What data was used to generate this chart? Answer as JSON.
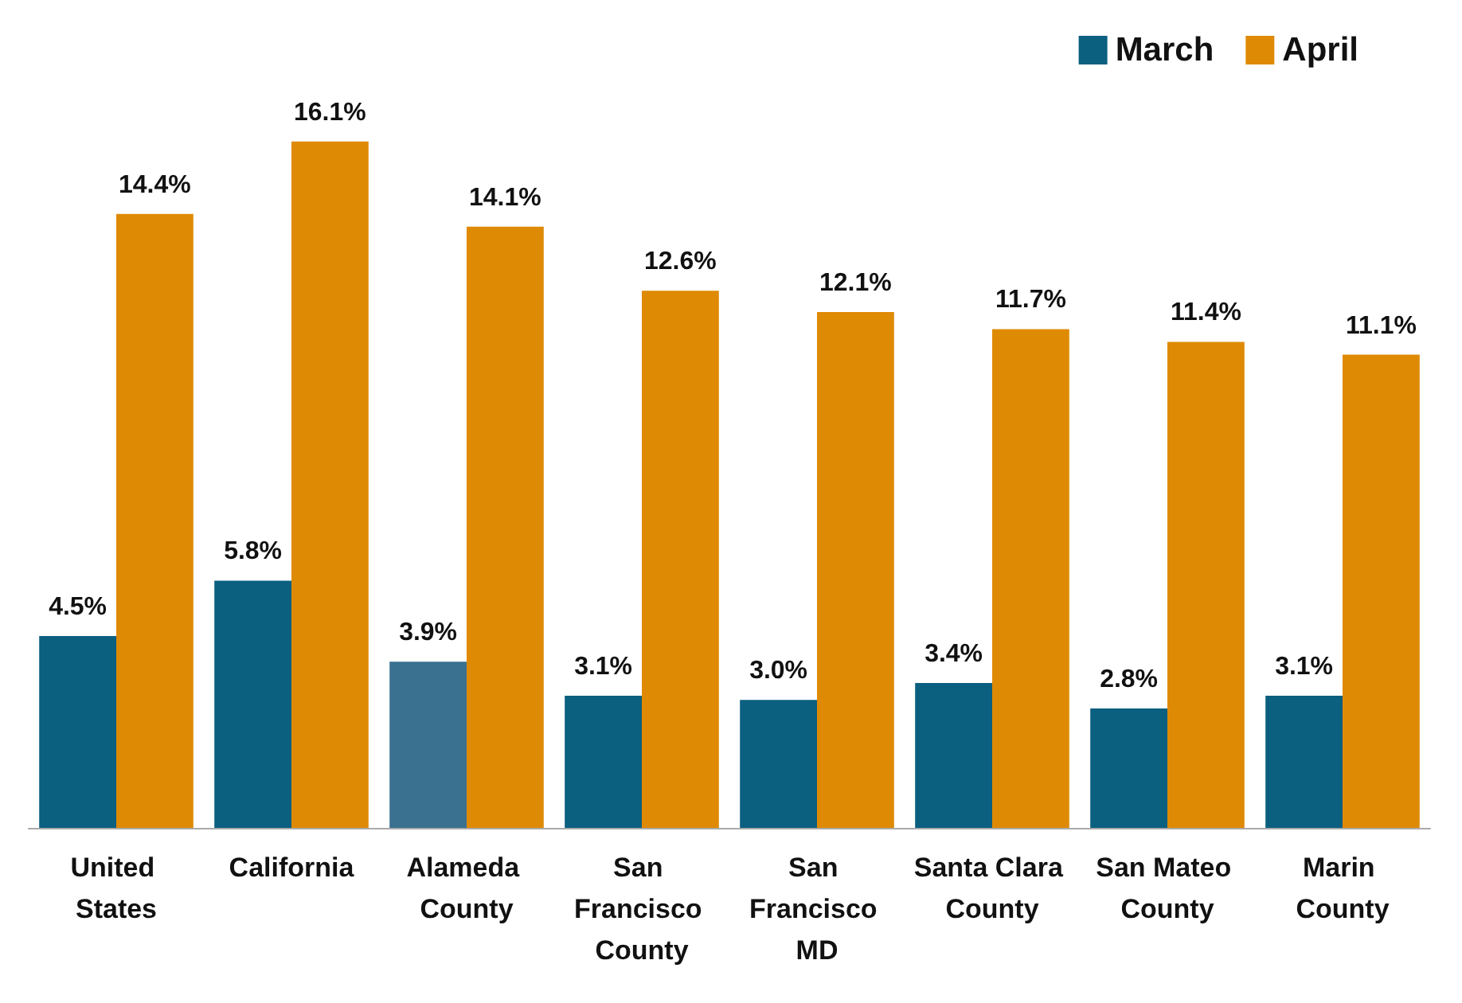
{
  "chart_data": {
    "type": "bar",
    "categories": [
      "United States",
      "California",
      "Alameda County",
      "San Francisco County",
      "San Francisco MD",
      "Santa Clara County",
      "San Mateo County",
      "Marin County"
    ],
    "series": [
      {
        "name": "March",
        "color": "#0b5f7f",
        "colors": [
          "#0b5f7f",
          "#0b5f7f",
          "#3a7090",
          "#0b5f7f",
          "#0b5f7f",
          "#0b5f7f",
          "#0b5f7f",
          "#0b5f7f"
        ],
        "values": [
          4.5,
          5.8,
          3.9,
          3.1,
          3.0,
          3.4,
          2.8,
          3.1
        ],
        "value_labels": [
          "4.5%",
          "5.8%",
          "3.9%",
          "3.1%",
          "3.0%",
          "3.4%",
          "2.8%",
          "3.1%"
        ]
      },
      {
        "name": "April",
        "color": "#df8a05",
        "values": [
          14.4,
          16.1,
          14.1,
          12.6,
          12.1,
          11.7,
          11.4,
          11.1
        ],
        "value_labels": [
          "14.4%",
          "16.1%",
          "14.1%",
          "12.6%",
          "12.1%",
          "11.7%",
          "11.4%",
          "11.1%"
        ]
      }
    ],
    "legend": "top right",
    "grid": false
  }
}
